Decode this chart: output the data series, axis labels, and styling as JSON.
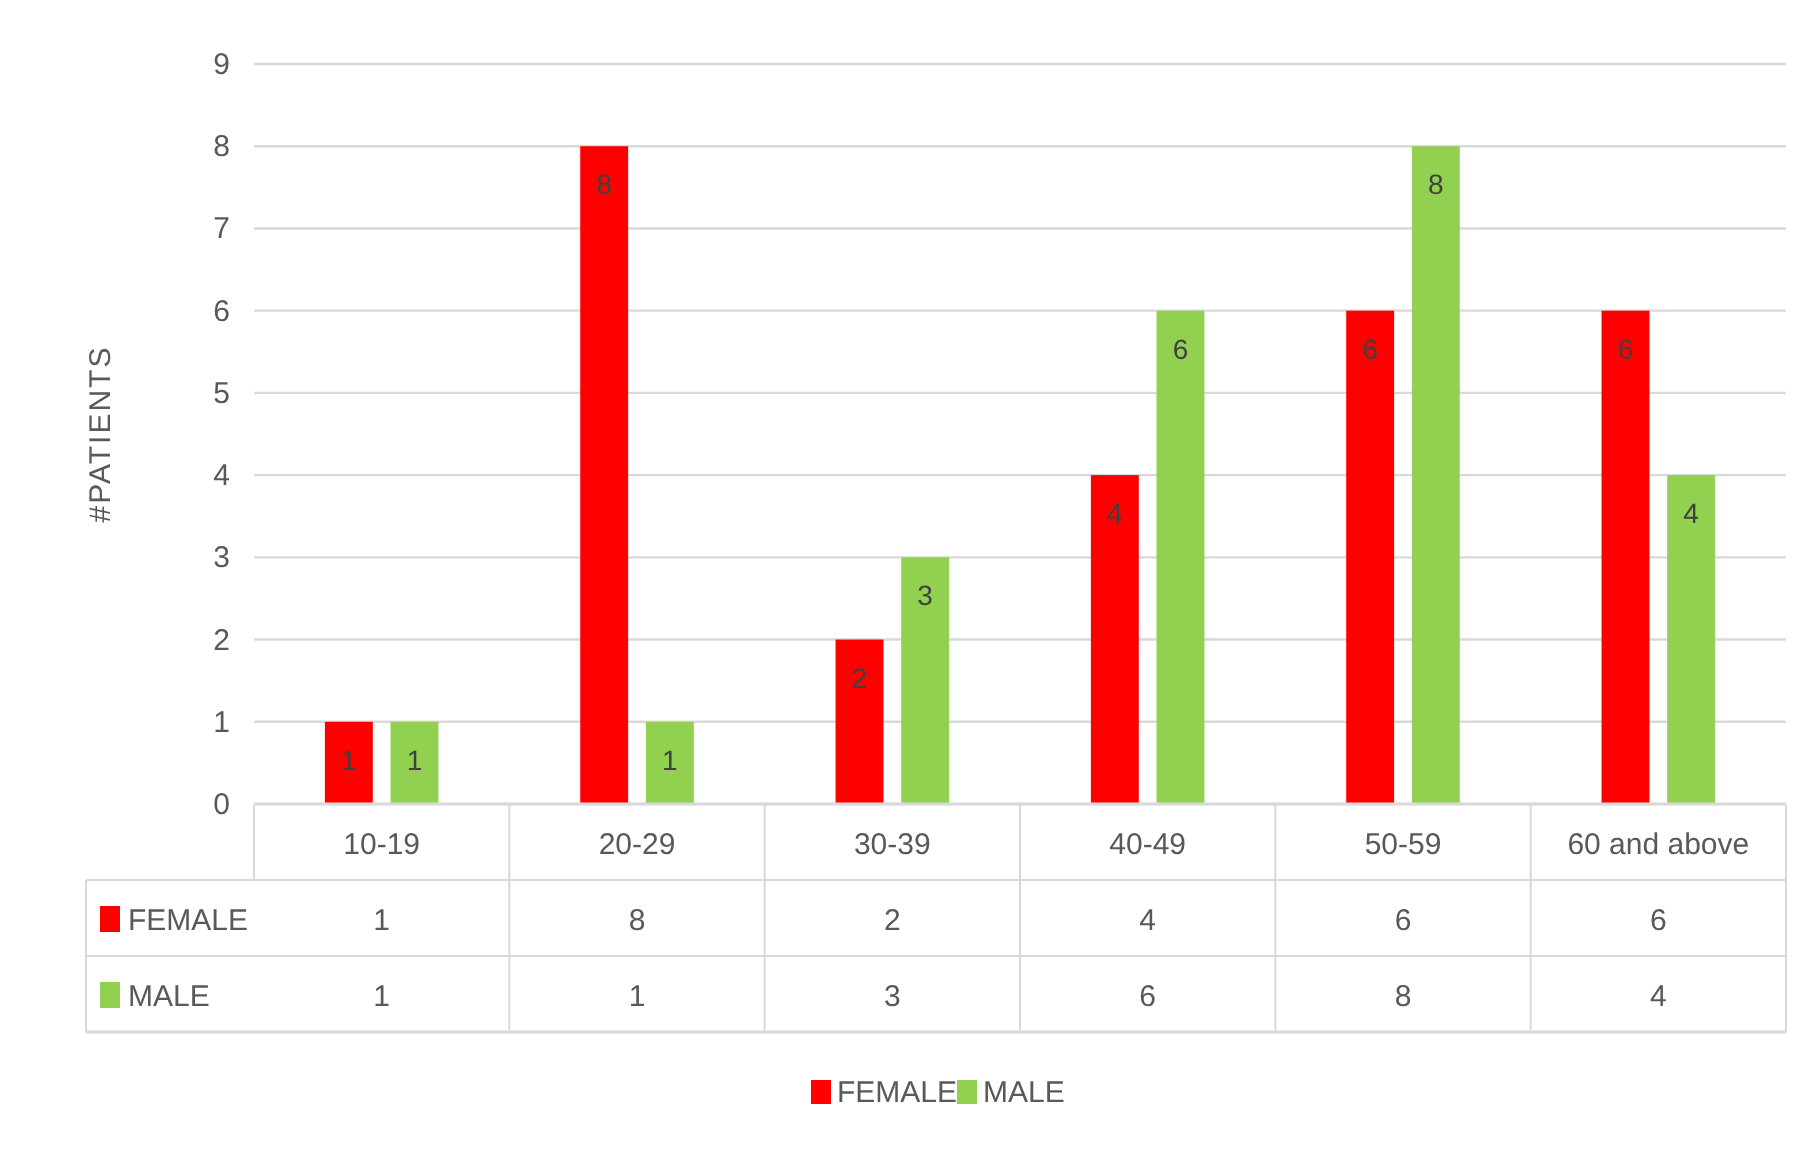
{
  "chart_data": {
    "type": "bar",
    "ylabel": "#PATIENTS",
    "categories": [
      "10-19",
      "20-29",
      "30-39",
      "40-49",
      "50-59",
      "60 and above"
    ],
    "series": [
      {
        "name": "FEMALE",
        "color": "#ff0000",
        "values": [
          1,
          8,
          2,
          4,
          6,
          6
        ]
      },
      {
        "name": "MALE",
        "color": "#92d050",
        "values": [
          1,
          1,
          3,
          6,
          8,
          4
        ]
      }
    ],
    "annotations": [
      {
        "text": "1",
        "x": "10-19",
        "y": 1
      },
      {
        "text": "8",
        "x": "20-29",
        "y": 8
      },
      {
        "text": "2",
        "x": "30-39",
        "y": 2
      },
      {
        "text": "4",
        "x": "40-49",
        "y": 4
      },
      {
        "text": "6",
        "x": "50-59",
        "y": 6
      },
      {
        "text": "6",
        "x": "60 and above",
        "y": 6
      },
      {
        "text": "1",
        "x": "10-19",
        "y": 1
      },
      {
        "text": "1",
        "x": "20-29",
        "y": 1
      },
      {
        "text": "3",
        "x": "30-39",
        "y": 3
      },
      {
        "text": "6",
        "x": "40-49",
        "y": 6
      },
      {
        "text": "8",
        "x": "50-59",
        "y": 8
      },
      {
        "text": "4",
        "x": "60 and above",
        "y": 4
      }
    ],
    "ylim": [
      0,
      9
    ],
    "yticks": [
      0,
      1,
      2,
      3,
      4,
      5,
      6,
      7,
      8,
      9
    ],
    "grid": "y",
    "legend": "bottom",
    "data_labels": true
  }
}
